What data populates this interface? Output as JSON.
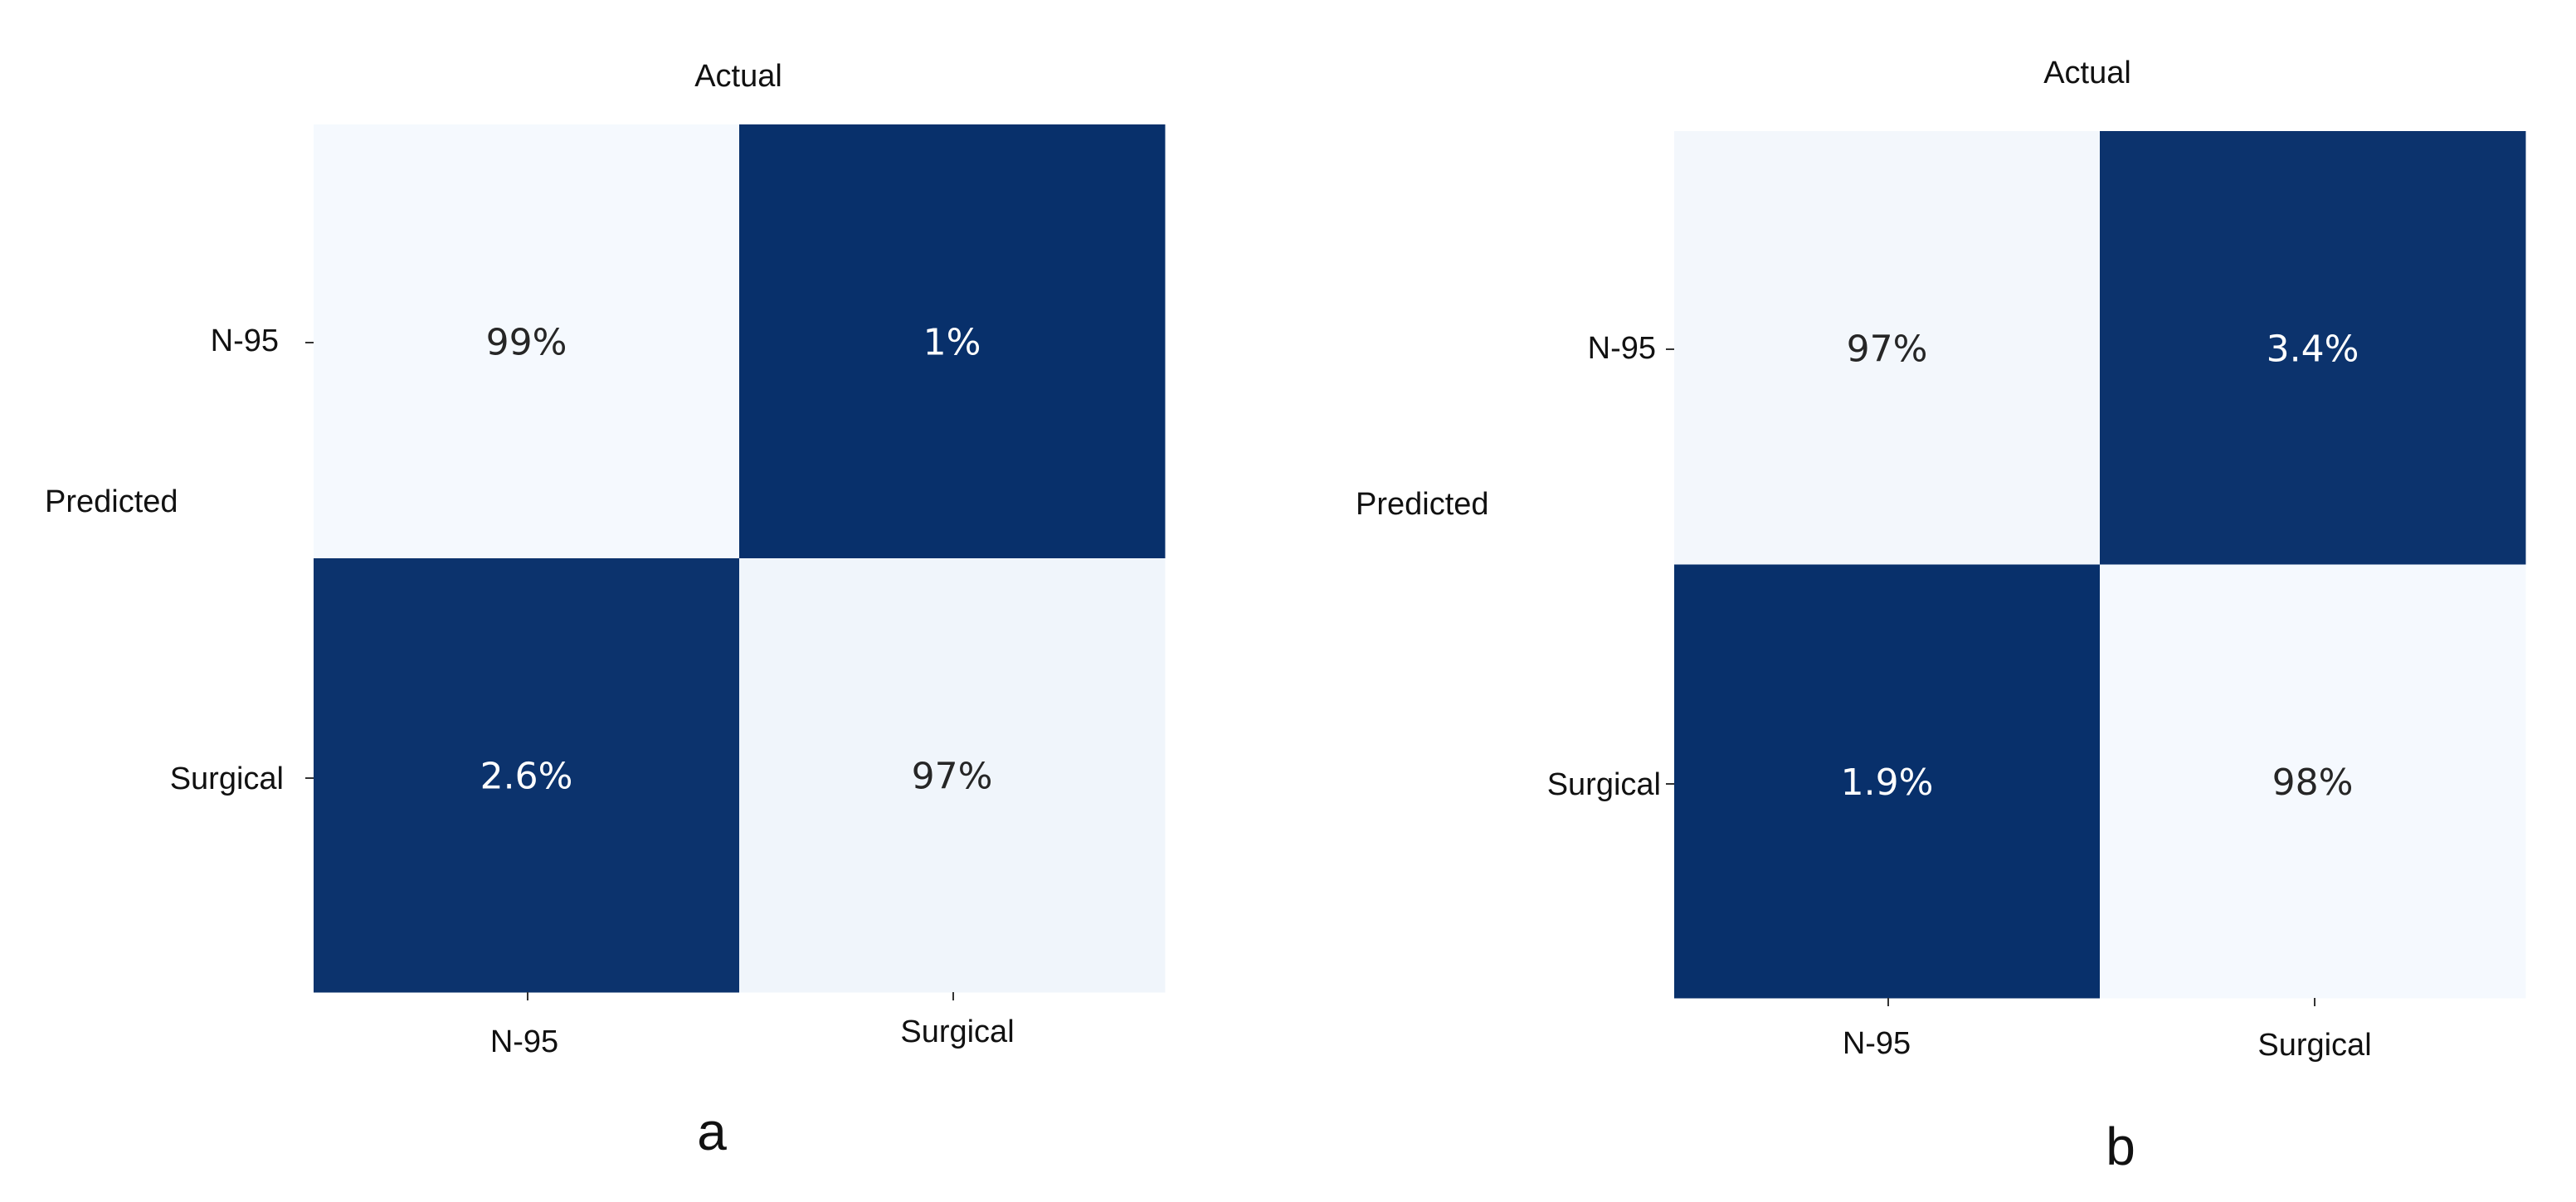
{
  "colors": {
    "low": "#f5f9fe",
    "high": "#08306b",
    "text_on_low": "#262626",
    "text_on_high": "#ffffff"
  },
  "chart_data": [
    {
      "type": "heatmap",
      "panel_label": "a",
      "xlabel": "Actual",
      "ylabel": "Predicted",
      "x_categories": [
        "N-95",
        "Surgical"
      ],
      "y_categories": [
        "N-95",
        "Surgical"
      ],
      "values": [
        [
          99,
          1
        ],
        [
          2.6,
          97
        ]
      ],
      "annotations": [
        [
          "99%",
          "1%"
        ],
        [
          "2.6%",
          "97%"
        ]
      ],
      "unit": "%",
      "colorbar": false
    },
    {
      "type": "heatmap",
      "panel_label": "b",
      "xlabel": "Actual",
      "ylabel": "Predicted",
      "x_categories": [
        "N-95",
        "Surgical"
      ],
      "y_categories": [
        "N-95",
        "Surgical"
      ],
      "values": [
        [
          97,
          3.4
        ],
        [
          1.9,
          98
        ]
      ],
      "annotations": [
        [
          "97%",
          "3.4%"
        ],
        [
          "1.9%",
          "98%"
        ]
      ],
      "unit": "%",
      "colorbar": false
    }
  ]
}
